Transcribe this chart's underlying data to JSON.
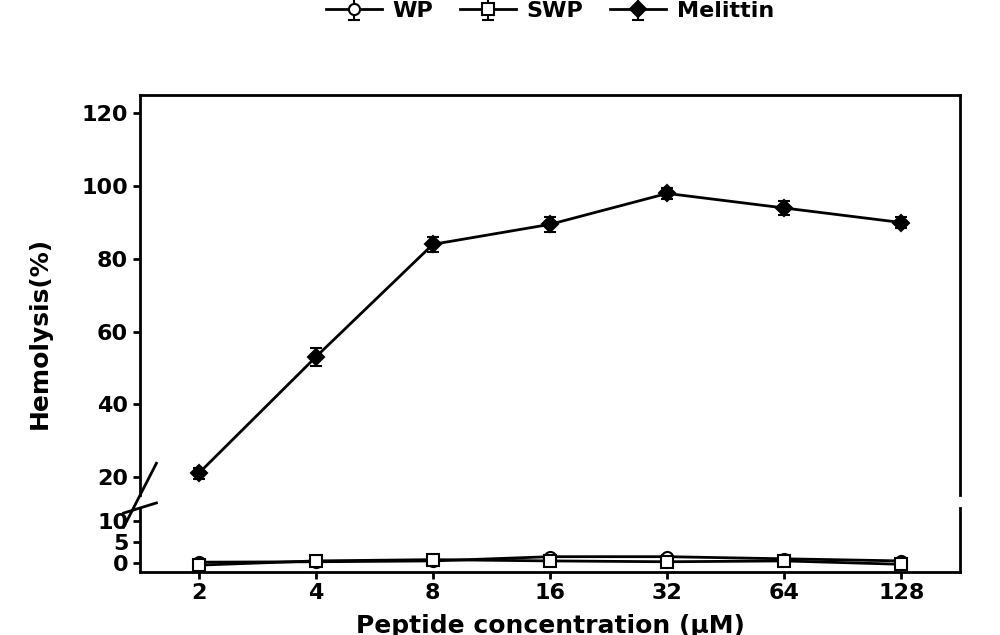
{
  "x": [
    2,
    4,
    8,
    16,
    32,
    64,
    128
  ],
  "WP": [
    0.2,
    0.3,
    0.5,
    1.5,
    1.5,
    1.0,
    0.5
  ],
  "WP_err": [
    0.15,
    0.15,
    0.2,
    0.35,
    0.35,
    0.25,
    0.15
  ],
  "SWP": [
    -0.5,
    0.5,
    0.8,
    0.5,
    0.3,
    0.5,
    -0.3
  ],
  "SWP_err": [
    0.3,
    0.3,
    0.3,
    0.3,
    0.3,
    0.3,
    0.3
  ],
  "Melittin": [
    21.0,
    53.0,
    84.0,
    89.5,
    98.0,
    94.0,
    90.0
  ],
  "Melittin_err": [
    1.5,
    2.5,
    2.0,
    2.0,
    1.5,
    2.0,
    1.5
  ],
  "xlabel": "Peptide concentration (μM)",
  "ylabel": "Hemolysis(%)",
  "yticks_upper": [
    20,
    40,
    60,
    80,
    100,
    120
  ],
  "yticks_lower": [
    0,
    5,
    10
  ],
  "ylim_upper": [
    15,
    125
  ],
  "ylim_lower": [
    -2,
    13
  ],
  "line_color": "#000000",
  "marker_WP": "o",
  "marker_SWP": "s",
  "marker_Melittin": "D",
  "legend_labels": [
    "WP",
    "SWP",
    "Melittin"
  ],
  "label_fontsize": 18,
  "tick_fontsize": 16,
  "legend_fontsize": 16,
  "lw": 2.0,
  "ms": 8,
  "capsize": 4
}
